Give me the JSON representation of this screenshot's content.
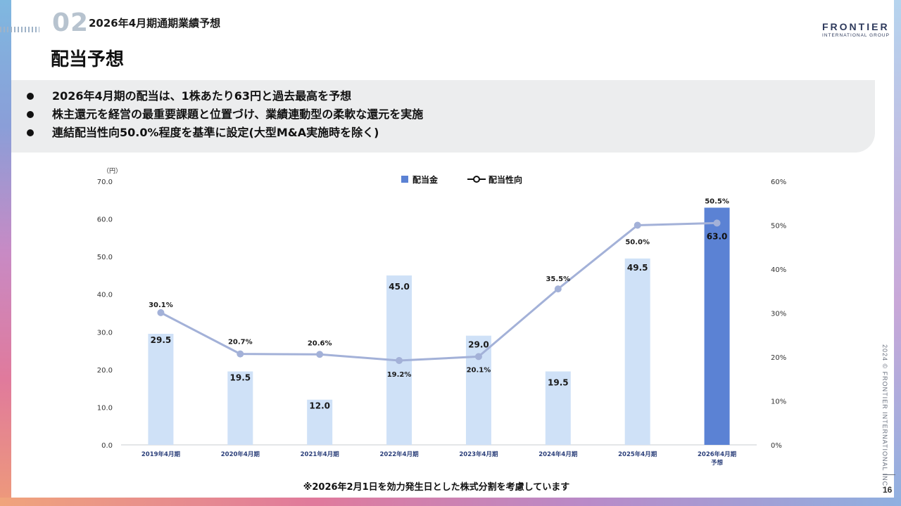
{
  "header": {
    "section_number": "02",
    "section_title": "2026年4月期通期業績予想",
    "page_title": "配当予想"
  },
  "logo": {
    "name": "FRONTIER",
    "subtitle": "INTERNATIONAL GROUP",
    "icon": "sound-wave-icon"
  },
  "summary": {
    "bullets": [
      "2026年4月期の配当は、1株あたり63円と過去最高を予想",
      "株主還元を経営の最重要課題と位置づけ、業績連動型の柔軟な還元を実施",
      "連結配当性向50.0%程度を基準に設定(大型M&A実施時を除く)"
    ]
  },
  "chart_data": {
    "type": "bar",
    "categories": [
      "2019年4月期",
      "2020年4月期",
      "2021年4月期",
      "2022年4月期",
      "2023年4月期",
      "2024年4月期",
      "2025年4月期",
      "2026年4月期\n予想"
    ],
    "y_unit_label": "（円）",
    "ylim": [
      0,
      70
    ],
    "yticks": [
      "0.0",
      "10.0",
      "20.0",
      "30.0",
      "40.0",
      "50.0",
      "60.0",
      "70.0"
    ],
    "y2lim": [
      0,
      60
    ],
    "y2ticks": [
      "0%",
      "10%",
      "20%",
      "30%",
      "40%",
      "50%",
      "60%"
    ],
    "legend_position": "top-center",
    "grid": false,
    "series": [
      {
        "name": "配当金",
        "type": "bar",
        "axis": "left",
        "values": [
          29.5,
          19.5,
          12.0,
          45.0,
          29.0,
          19.5,
          49.5,
          63.0
        ],
        "labels": [
          "29.5",
          "19.5",
          "12.0",
          "45.0",
          "29.0",
          "19.5",
          "49.5",
          "63.0"
        ],
        "color": "#cfe1f7",
        "highlight_color": "#5b82d4",
        "highlight_index": 7
      },
      {
        "name": "配当性向",
        "type": "line",
        "axis": "right",
        "values": [
          30.1,
          20.7,
          20.6,
          19.2,
          20.1,
          35.5,
          50.0,
          50.5
        ],
        "labels": [
          "30.1%",
          "20.7%",
          "20.6%",
          "19.2%",
          "20.1%",
          "35.5%",
          "50.0%",
          "50.5%"
        ],
        "color": "#a3b1d8"
      }
    ]
  },
  "footnote": "※2026年2月1日を効力発生日とした株式分割を考慮しています",
  "copyright": "2024 © FRONTIER INTERNATIONAL INC.",
  "page_number": "16"
}
